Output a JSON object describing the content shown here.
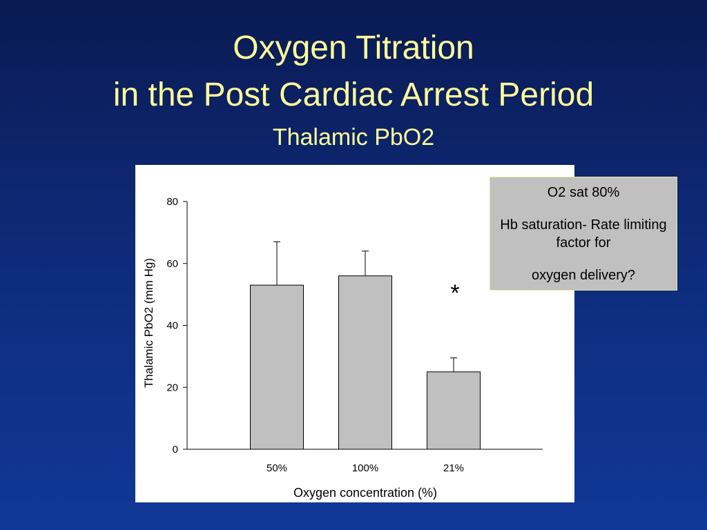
{
  "slide": {
    "title_line1": "Oxygen Titration",
    "title_line2": "in the Post Cardiac Arrest Period",
    "subtitle": "Thalamic PbO2"
  },
  "note": {
    "line1": "O2 sat 80%",
    "line2": "Hb saturation- Rate limiting factor for",
    "line3": "oxygen delivery?"
  },
  "colors": {
    "title_text": "#ffff99",
    "bar_fill": "#c0c0c0",
    "note_fill": "#c0c0c0"
  },
  "chart_data": {
    "type": "bar",
    "categories": [
      "50%",
      "100%",
      "21%"
    ],
    "values": [
      53,
      56,
      25
    ],
    "error_upper": [
      67,
      64,
      29.5
    ],
    "xlabel": "Oxygen concentration (%)",
    "ylabel": "Thalamic PbO2 (mm Hg)",
    "ylim": [
      0,
      80
    ],
    "yticks": [
      "0",
      "20",
      "40",
      "60",
      "80"
    ],
    "annotation": "*",
    "grid": false
  }
}
